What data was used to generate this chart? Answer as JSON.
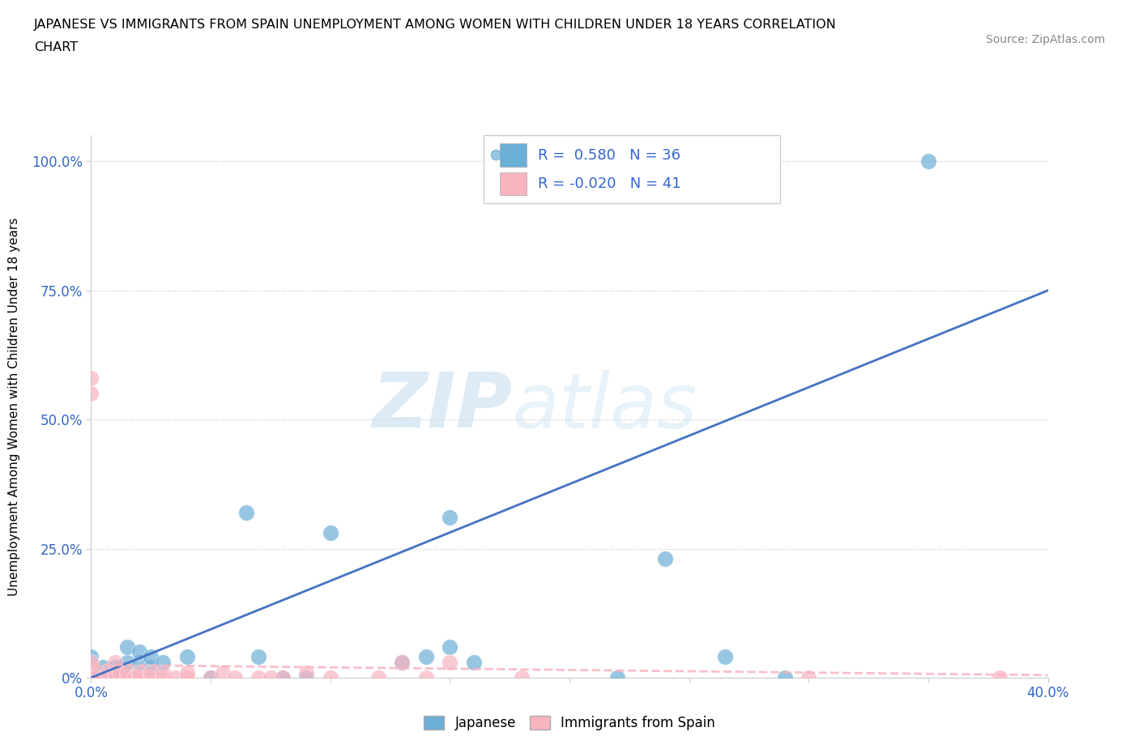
{
  "title_line1": "JAPANESE VS IMMIGRANTS FROM SPAIN UNEMPLOYMENT AMONG WOMEN WITH CHILDREN UNDER 18 YEARS CORRELATION",
  "title_line2": "CHART",
  "source": "Source: ZipAtlas.com",
  "ylabel": "Unemployment Among Women with Children Under 18 years",
  "xlim": [
    0.0,
    0.4
  ],
  "ylim": [
    0.0,
    1.05
  ],
  "xticks": [
    0.0,
    0.05,
    0.1,
    0.15,
    0.2,
    0.25,
    0.3,
    0.35,
    0.4
  ],
  "xticklabels": [
    "0.0%",
    "",
    "",
    "",
    "",
    "",
    "",
    "",
    "40.0%"
  ],
  "yticks": [
    0.0,
    0.25,
    0.5,
    0.75,
    1.0
  ],
  "yticklabels": [
    "0%",
    "25.0%",
    "50.0%",
    "75.0%",
    "100.0%"
  ],
  "watermark_zip": "ZIP",
  "watermark_atlas": "atlas",
  "japanese_color": "#6baed6",
  "japan_line_color": "#4472c4",
  "spain_color": "#f9b4c0",
  "spain_line_color": "#f9b4c0",
  "japanese_R": 0.58,
  "japanese_N": 36,
  "spain_R": -0.02,
  "spain_N": 41,
  "japanese_x": [
    0.0,
    0.0,
    0.0,
    0.0,
    0.002,
    0.003,
    0.005,
    0.005,
    0.008,
    0.01,
    0.01,
    0.012,
    0.015,
    0.015,
    0.02,
    0.02,
    0.025,
    0.025,
    0.03,
    0.04,
    0.05,
    0.065,
    0.07,
    0.08,
    0.09,
    0.1,
    0.13,
    0.14,
    0.15,
    0.15,
    0.16,
    0.22,
    0.24,
    0.265,
    0.29,
    0.35
  ],
  "japanese_y": [
    0.0,
    0.01,
    0.02,
    0.04,
    0.0,
    0.01,
    0.0,
    0.02,
    0.01,
    0.0,
    0.02,
    0.02,
    0.03,
    0.06,
    0.03,
    0.05,
    0.02,
    0.04,
    0.03,
    0.04,
    0.0,
    0.32,
    0.04,
    0.0,
    0.0,
    0.28,
    0.03,
    0.04,
    0.31,
    0.06,
    0.03,
    0.0,
    0.23,
    0.04,
    0.0,
    1.0
  ],
  "spain_x": [
    0.0,
    0.0,
    0.0,
    0.0,
    0.0,
    0.0,
    0.002,
    0.003,
    0.005,
    0.007,
    0.01,
    0.01,
    0.01,
    0.012,
    0.015,
    0.015,
    0.018,
    0.02,
    0.02,
    0.025,
    0.025,
    0.03,
    0.03,
    0.035,
    0.04,
    0.04,
    0.05,
    0.055,
    0.06,
    0.07,
    0.075,
    0.08,
    0.09,
    0.1,
    0.12,
    0.13,
    0.14,
    0.15,
    0.18,
    0.3,
    0.38
  ],
  "spain_y": [
    0.0,
    0.01,
    0.02,
    0.03,
    0.55,
    0.58,
    0.0,
    0.01,
    0.0,
    0.01,
    0.0,
    0.01,
    0.03,
    0.01,
    0.0,
    0.01,
    0.0,
    0.0,
    0.01,
    0.0,
    0.01,
    0.0,
    0.01,
    0.0,
    0.0,
    0.01,
    0.0,
    0.01,
    0.0,
    0.0,
    0.0,
    0.0,
    0.01,
    0.0,
    0.0,
    0.03,
    0.0,
    0.03,
    0.0,
    0.0,
    0.0
  ],
  "japan_regline_x": [
    0.0,
    0.4
  ],
  "japan_regline_y": [
    0.0,
    0.75
  ],
  "spain_regline_x": [
    0.0,
    0.4
  ],
  "spain_regline_y": [
    0.025,
    0.005
  ]
}
